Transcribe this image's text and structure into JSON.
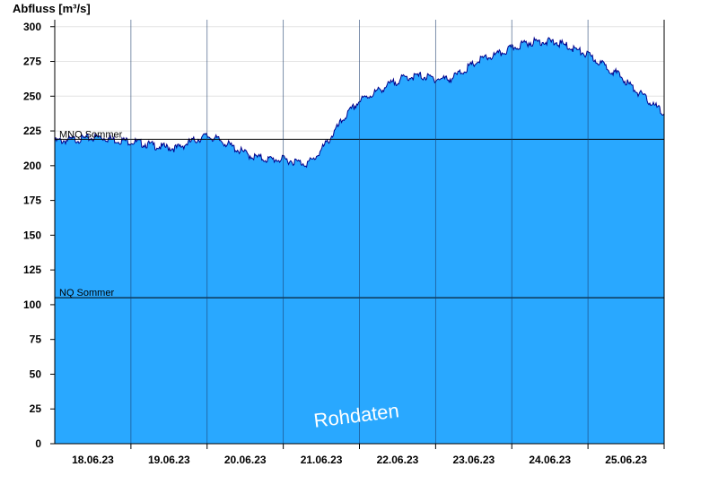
{
  "chart_data": {
    "type": "area",
    "title": "Abfluss [m³/s]",
    "ylim": [
      0,
      305
    ],
    "yticks": [
      "0",
      "25",
      "50",
      "75",
      "100",
      "125",
      "150",
      "175",
      "200",
      "225",
      "250",
      "275",
      "300"
    ],
    "ytick_values": [
      0,
      25,
      50,
      75,
      100,
      125,
      150,
      175,
      200,
      225,
      250,
      275,
      300
    ],
    "xlim_days": [
      17.7,
      25.7
    ],
    "xtick_labels": [
      "18.06.23",
      "19.06.23",
      "20.06.23",
      "21.06.23",
      "22.06.23",
      "23.06.23",
      "24.06.23",
      "25.06.23"
    ],
    "xtick_days": [
      18.2,
      19.2,
      20.2,
      21.2,
      22.2,
      23.2,
      24.2,
      25.2
    ],
    "day_boundaries": [
      18.7,
      19.7,
      20.7,
      21.7,
      22.7,
      23.7,
      24.7,
      25.7
    ],
    "grid": true,
    "fill_color": "#29a8ff",
    "line_color": "#00008b",
    "series": [
      {
        "name": "",
        "x_days": [
          17.7,
          17.9,
          18.1,
          18.3,
          18.5,
          18.7,
          18.9,
          19.1,
          19.3,
          19.5,
          19.7,
          19.9,
          20.1,
          20.3,
          20.5,
          20.7,
          20.9,
          21.0,
          21.1,
          21.3,
          21.5,
          21.7,
          21.9,
          22.1,
          22.3,
          22.5,
          22.7,
          22.9,
          23.1,
          23.3,
          23.5,
          23.7,
          23.9,
          24.1,
          24.3,
          24.5,
          24.7,
          24.9,
          25.1,
          25.3,
          25.5,
          25.7
        ],
        "y": [
          219,
          220,
          221,
          222,
          220,
          219,
          217,
          215,
          214,
          219,
          223,
          219,
          213,
          208,
          206,
          206,
          204,
          203,
          206,
          220,
          236,
          248,
          254,
          260,
          265,
          266,
          264,
          264,
          271,
          278,
          281,
          286,
          290,
          291,
          290,
          286,
          281,
          274,
          267,
          257,
          248,
          239
        ]
      }
    ],
    "reference_lines": [
      {
        "label": "MNQ Sommer",
        "value": 219
      },
      {
        "label": "NQ Sommer",
        "value": 105
      }
    ],
    "watermark": "Rohdaten"
  }
}
